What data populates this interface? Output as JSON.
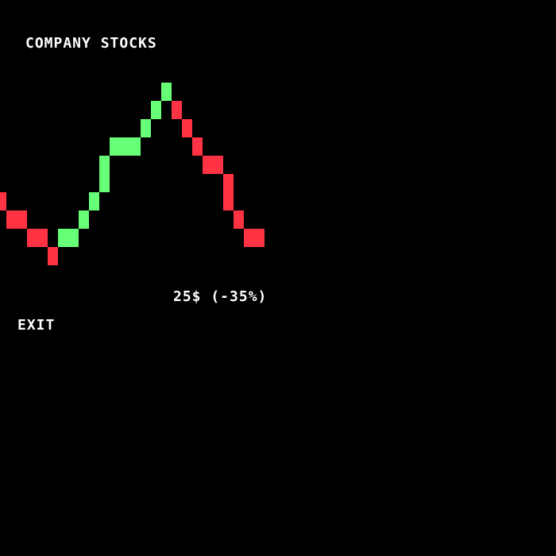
{
  "screen": {
    "title": "COMPANY STOCKS",
    "price_readout": "25$ (-35%)",
    "exit_label": "EXIT"
  },
  "colors": {
    "background": "#000000",
    "text": "#ffffff",
    "up": "#66ff77",
    "down": "#ff3344"
  },
  "chart_data": {
    "type": "line",
    "title": "",
    "xlabel": "",
    "ylabel": "",
    "grid": false,
    "legend": "none",
    "ylim": [
      0,
      10
    ],
    "series": [
      {
        "values": [
          4.0,
          3.0,
          2.0,
          1.0,
          2.0,
          3.0,
          4.0,
          6.0,
          7.0,
          8.0,
          9.0,
          10.0,
          9.0,
          8.0,
          7.0,
          6.0,
          4.0,
          3.0,
          2.0
        ],
        "moves": [
          "down",
          "down",
          "down",
          "down",
          "up",
          "up",
          "up",
          "up",
          "up",
          "up",
          "up",
          "up",
          "down",
          "down",
          "down",
          "down",
          "down",
          "down",
          "down"
        ],
        "widths": [
          1,
          2,
          2,
          1,
          2,
          1,
          1,
          1,
          3,
          1,
          1,
          1,
          1,
          1,
          1,
          2,
          1,
          1,
          2
        ]
      }
    ]
  }
}
